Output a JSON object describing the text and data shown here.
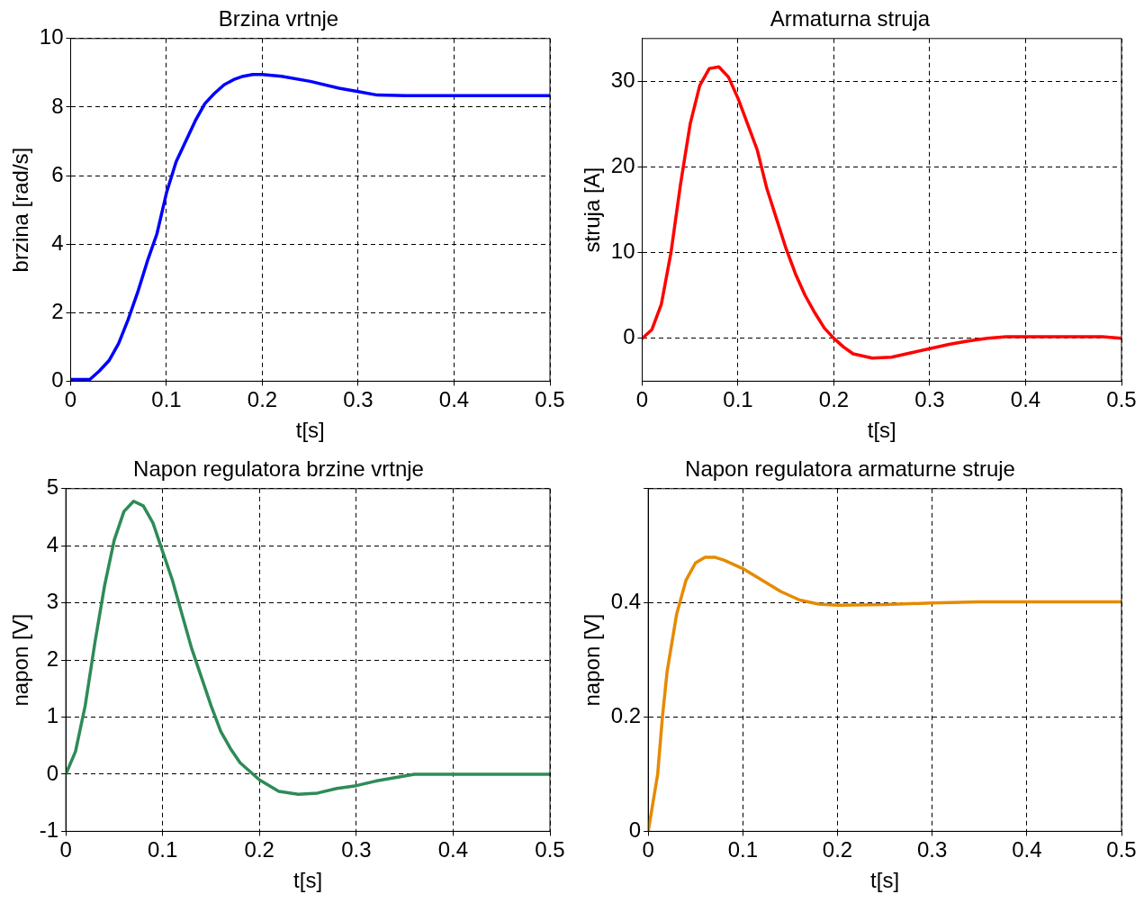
{
  "chart_data": [
    {
      "type": "line",
      "title": "Brzina vrtnje",
      "xlabel": "t[s]",
      "ylabel": "brzina [rad/s]",
      "color": "#0000ff",
      "grid": true,
      "xlim": [
        0,
        0.5
      ],
      "xticks": [
        0,
        0.1,
        0.2,
        0.3,
        0.4,
        0.5
      ],
      "ylim": [
        0,
        10
      ],
      "yticks": [
        0,
        2,
        4,
        6,
        8,
        10
      ],
      "x": [
        0,
        0.02,
        0.03,
        0.04,
        0.05,
        0.06,
        0.07,
        0.08,
        0.09,
        0.1,
        0.11,
        0.12,
        0.13,
        0.14,
        0.15,
        0.16,
        0.17,
        0.18,
        0.19,
        0.2,
        0.22,
        0.25,
        0.28,
        0.3,
        0.32,
        0.35,
        0.4,
        0.5
      ],
      "values": [
        0.05,
        0.05,
        0.3,
        0.6,
        1.1,
        1.8,
        2.6,
        3.5,
        4.3,
        5.5,
        6.4,
        7.0,
        7.6,
        8.1,
        8.4,
        8.65,
        8.8,
        8.9,
        8.95,
        8.95,
        8.9,
        8.75,
        8.55,
        8.45,
        8.35,
        8.33,
        8.33,
        8.33
      ]
    },
    {
      "type": "line",
      "title": "Armaturna struja",
      "xlabel": "t[s]",
      "ylabel": "struja [A]",
      "color": "#ff0000",
      "grid": true,
      "xlim": [
        0,
        0.5
      ],
      "xticks": [
        0,
        0.1,
        0.2,
        0.3,
        0.4,
        0.5
      ],
      "ylim": [
        -5,
        35
      ],
      "yticks": [
        0,
        10,
        20,
        30
      ],
      "x": [
        0,
        0.01,
        0.02,
        0.03,
        0.04,
        0.05,
        0.06,
        0.07,
        0.08,
        0.09,
        0.1,
        0.11,
        0.12,
        0.13,
        0.14,
        0.15,
        0.16,
        0.17,
        0.18,
        0.19,
        0.2,
        0.21,
        0.22,
        0.24,
        0.26,
        0.28,
        0.3,
        0.32,
        0.34,
        0.36,
        0.38,
        0.4,
        0.45,
        0.48,
        0.5
      ],
      "values": [
        0,
        1,
        4,
        10,
        18,
        25,
        29.5,
        31.5,
        31.7,
        30.5,
        28,
        25,
        22,
        17.5,
        14,
        10.5,
        7.5,
        5,
        3,
        1.2,
        0,
        -1,
        -1.8,
        -2.3,
        -2.2,
        -1.7,
        -1.2,
        -0.7,
        -0.3,
        0,
        0.2,
        0.2,
        0.2,
        0.2,
        0
      ]
    },
    {
      "type": "line",
      "title": "Napon regulatora brzine vrtnje",
      "xlabel": "t[s]",
      "ylabel": "napon [V]",
      "color": "#2e8b57",
      "grid": true,
      "xlim": [
        0,
        0.5
      ],
      "xticks": [
        0,
        0.1,
        0.2,
        0.3,
        0.4,
        0.5
      ],
      "ylim": [
        -1,
        5
      ],
      "yticks": [
        -1,
        0,
        1,
        2,
        3,
        4,
        5
      ],
      "x": [
        0,
        0.01,
        0.02,
        0.03,
        0.04,
        0.05,
        0.06,
        0.07,
        0.08,
        0.09,
        0.1,
        0.11,
        0.12,
        0.13,
        0.14,
        0.15,
        0.16,
        0.17,
        0.18,
        0.19,
        0.2,
        0.22,
        0.24,
        0.26,
        0.28,
        0.3,
        0.32,
        0.34,
        0.36,
        0.4,
        0.5
      ],
      "values": [
        0,
        0.4,
        1.2,
        2.3,
        3.3,
        4.1,
        4.6,
        4.78,
        4.7,
        4.4,
        3.9,
        3.4,
        2.8,
        2.2,
        1.7,
        1.2,
        0.75,
        0.45,
        0.2,
        0.05,
        -0.1,
        -0.3,
        -0.35,
        -0.33,
        -0.25,
        -0.2,
        -0.12,
        -0.06,
        0,
        0,
        0
      ]
    },
    {
      "type": "line",
      "title": "Napon regulatora armaturne struje",
      "xlabel": "t[s]",
      "ylabel": "napon [V]",
      "color": "#e68a00",
      "grid": true,
      "xlim": [
        0,
        0.5
      ],
      "xticks": [
        0,
        0.1,
        0.2,
        0.3,
        0.4,
        0.5
      ],
      "ylim": [
        0,
        0.6
      ],
      "yticks": [
        0,
        0.2,
        0.4,
        {
          "value": 0.6,
          "label": null
        }
      ],
      "x": [
        0,
        0.005,
        0.01,
        0.015,
        0.02,
        0.03,
        0.04,
        0.05,
        0.06,
        0.07,
        0.08,
        0.1,
        0.12,
        0.14,
        0.16,
        0.18,
        0.2,
        0.25,
        0.3,
        0.35,
        0.5
      ],
      "values": [
        0,
        0.05,
        0.1,
        0.2,
        0.28,
        0.38,
        0.44,
        0.47,
        0.48,
        0.48,
        0.475,
        0.46,
        0.44,
        0.42,
        0.405,
        0.398,
        0.396,
        0.397,
        0.4,
        0.402,
        0.402
      ]
    }
  ]
}
